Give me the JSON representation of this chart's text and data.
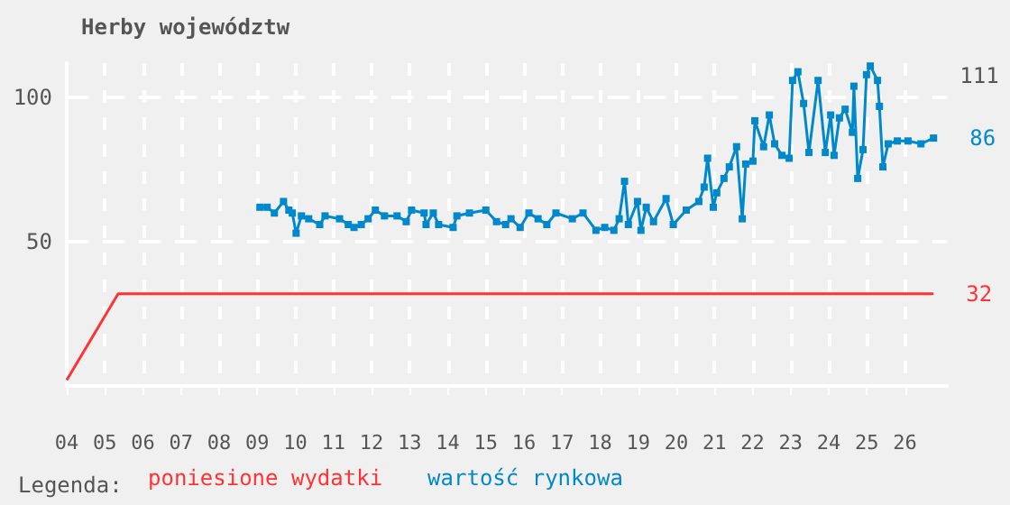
{
  "chart_data": {
    "type": "line",
    "title": "Herby województw",
    "legend_title": "Legenda:",
    "legend": "bottom left",
    "grid": true,
    "xlim": [
      2004,
      2027.1
    ],
    "ylim": [
      0,
      112
    ],
    "yticks": [
      50,
      100
    ],
    "xticks": [
      {
        "value": 2004,
        "label": "04"
      },
      {
        "value": 2005,
        "label": "05"
      },
      {
        "value": 2006,
        "label": "06"
      },
      {
        "value": 2007,
        "label": "07"
      },
      {
        "value": 2008,
        "label": "08"
      },
      {
        "value": 2009,
        "label": "09"
      },
      {
        "value": 2010,
        "label": "10"
      },
      {
        "value": 2011,
        "label": "11"
      },
      {
        "value": 2012,
        "label": "12"
      },
      {
        "value": 2013,
        "label": "13"
      },
      {
        "value": 2014,
        "label": "14"
      },
      {
        "value": 2015,
        "label": "15"
      },
      {
        "value": 2016,
        "label": "16"
      },
      {
        "value": 2017,
        "label": "17"
      },
      {
        "value": 2018,
        "label": "18"
      },
      {
        "value": 2019,
        "label": "19"
      },
      {
        "value": 2020,
        "label": "20"
      },
      {
        "value": 2021,
        "label": "21"
      },
      {
        "value": 2022,
        "label": "22"
      },
      {
        "value": 2023,
        "label": "23"
      },
      {
        "value": 2024,
        "label": "24"
      },
      {
        "value": 2025,
        "label": "25"
      },
      {
        "value": 2026,
        "label": "26"
      }
    ],
    "annotations": [
      "111"
    ],
    "series": [
      {
        "name": "poniesione wydatki",
        "color": "#ff3333",
        "marker": "none",
        "x": [
          2004,
          2005.35,
          2026.75
        ],
        "values": [
          2,
          32,
          32
        ],
        "value_labels": [
          null,
          null,
          "32"
        ]
      },
      {
        "name": "wartość rynkowa",
        "color": "#0088cc",
        "marker": "square",
        "x": [
          2009.07,
          2009.26,
          2009.45,
          2009.69,
          2009.83,
          2009.92,
          2010.02,
          2010.16,
          2010.35,
          2010.64,
          2010.78,
          2011.16,
          2011.39,
          2011.54,
          2011.73,
          2011.91,
          2012.1,
          2012.34,
          2012.67,
          2012.91,
          2013.05,
          2013.38,
          2013.43,
          2013.62,
          2013.76,
          2014.14,
          2014.24,
          2014.57,
          2015.0,
          2015.28,
          2015.52,
          2015.66,
          2015.9,
          2016.13,
          2016.37,
          2016.6,
          2016.84,
          2017.27,
          2017.55,
          2017.89,
          2018.12,
          2018.36,
          2018.5,
          2018.64,
          2018.74,
          2018.98,
          2019.07,
          2019.21,
          2019.4,
          2019.73,
          2019.92,
          2020.26,
          2020.59,
          2020.73,
          2020.82,
          2020.97,
          2021.06,
          2021.25,
          2021.39,
          2021.58,
          2021.73,
          2021.82,
          2022.01,
          2022.06,
          2022.29,
          2022.44,
          2022.58,
          2022.77,
          2022.96,
          2023.05,
          2023.19,
          2023.34,
          2023.48,
          2023.72,
          2023.91,
          2024.05,
          2024.14,
          2024.28,
          2024.43,
          2024.62,
          2024.66,
          2024.76,
          2024.9,
          2024.99,
          2025.09,
          2025.28,
          2025.33,
          2025.42,
          2025.56,
          2025.8,
          2026.08,
          2026.42,
          2026.75
        ],
        "values": [
          62,
          62,
          60,
          64,
          61,
          60,
          53,
          59,
          58,
          56,
          59,
          58,
          56,
          55,
          56,
          58,
          61,
          59,
          59,
          57,
          61,
          60,
          56,
          60,
          56,
          55,
          59,
          60,
          61,
          57,
          56,
          58,
          55,
          60,
          58,
          56,
          60,
          58,
          60,
          54,
          55,
          54,
          58,
          71,
          56,
          64,
          54,
          62,
          57,
          65,
          56,
          61,
          64,
          69,
          79,
          62,
          67,
          72,
          76,
          83,
          58,
          77,
          78,
          92,
          83,
          94,
          84,
          80,
          79,
          106,
          109,
          98,
          81,
          106,
          81,
          94,
          80,
          93,
          96,
          88,
          104,
          72,
          82,
          108,
          111,
          106,
          97,
          76,
          84,
          85,
          85,
          84,
          86
        ],
        "value_labels": [
          null,
          null,
          null,
          null,
          null,
          null,
          null,
          null,
          null,
          null,
          null,
          null,
          null,
          null,
          null,
          null,
          null,
          null,
          null,
          null,
          null,
          null,
          null,
          null,
          null,
          null,
          null,
          null,
          null,
          null,
          null,
          null,
          null,
          null,
          null,
          null,
          null,
          null,
          null,
          null,
          null,
          null,
          null,
          null,
          null,
          null,
          null,
          null,
          null,
          null,
          null,
          null,
          null,
          null,
          null,
          null,
          null,
          null,
          null,
          null,
          null,
          null,
          null,
          null,
          null,
          null,
          null,
          null,
          null,
          null,
          null,
          null,
          null,
          null,
          null,
          null,
          null,
          null,
          null,
          null,
          null,
          null,
          null,
          null,
          null,
          null,
          null,
          null,
          null,
          null,
          null,
          null,
          "86"
        ]
      }
    ]
  }
}
